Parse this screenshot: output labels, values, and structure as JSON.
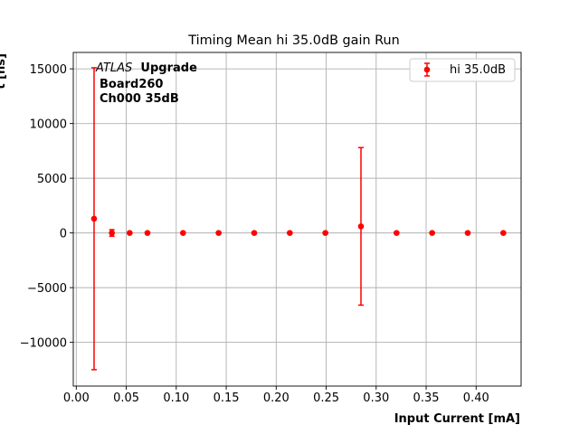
{
  "chart_data": {
    "type": "scatter",
    "title": "Timing Mean hi 35.0dB gain Run",
    "xlabel": "Input Current [mA]",
    "ylabel": "t [ns]",
    "xlim": [
      -0.003,
      0.445
    ],
    "ylim": [
      -14000,
      16500
    ],
    "xticks": [
      0.0,
      0.05,
      0.1,
      0.15,
      0.2,
      0.25,
      0.3,
      0.35,
      0.4
    ],
    "xtick_labels": [
      "0.00",
      "0.05",
      "0.10",
      "0.15",
      "0.20",
      "0.25",
      "0.30",
      "0.35",
      "0.40"
    ],
    "yticks": [
      -10000,
      -5000,
      0,
      5000,
      10000,
      15000
    ],
    "ytick_labels": [
      "−10000",
      "−5000",
      "0",
      "5000",
      "10000",
      "15000"
    ],
    "grid": true,
    "legend_position": "top-right",
    "annotation": {
      "experiment": "ATLAS",
      "tag": "Upgrade",
      "line2": "Board260",
      "line3": "Ch000 35dB"
    },
    "series": [
      {
        "name": "hi 35.0dB",
        "color": "#ff0000",
        "x": [
          0.0178,
          0.0356,
          0.0534,
          0.0712,
          0.1068,
          0.1424,
          0.178,
          0.2136,
          0.2492,
          0.2848,
          0.3204,
          0.356,
          0.3916,
          0.4272
        ],
        "y": [
          1300,
          0,
          0,
          0,
          0,
          0,
          0,
          0,
          0,
          600,
          0,
          0,
          0,
          0
        ],
        "yerr": [
          13800,
          300,
          0,
          0,
          0,
          0,
          0,
          0,
          0,
          7200,
          0,
          0,
          0,
          0
        ]
      }
    ]
  }
}
